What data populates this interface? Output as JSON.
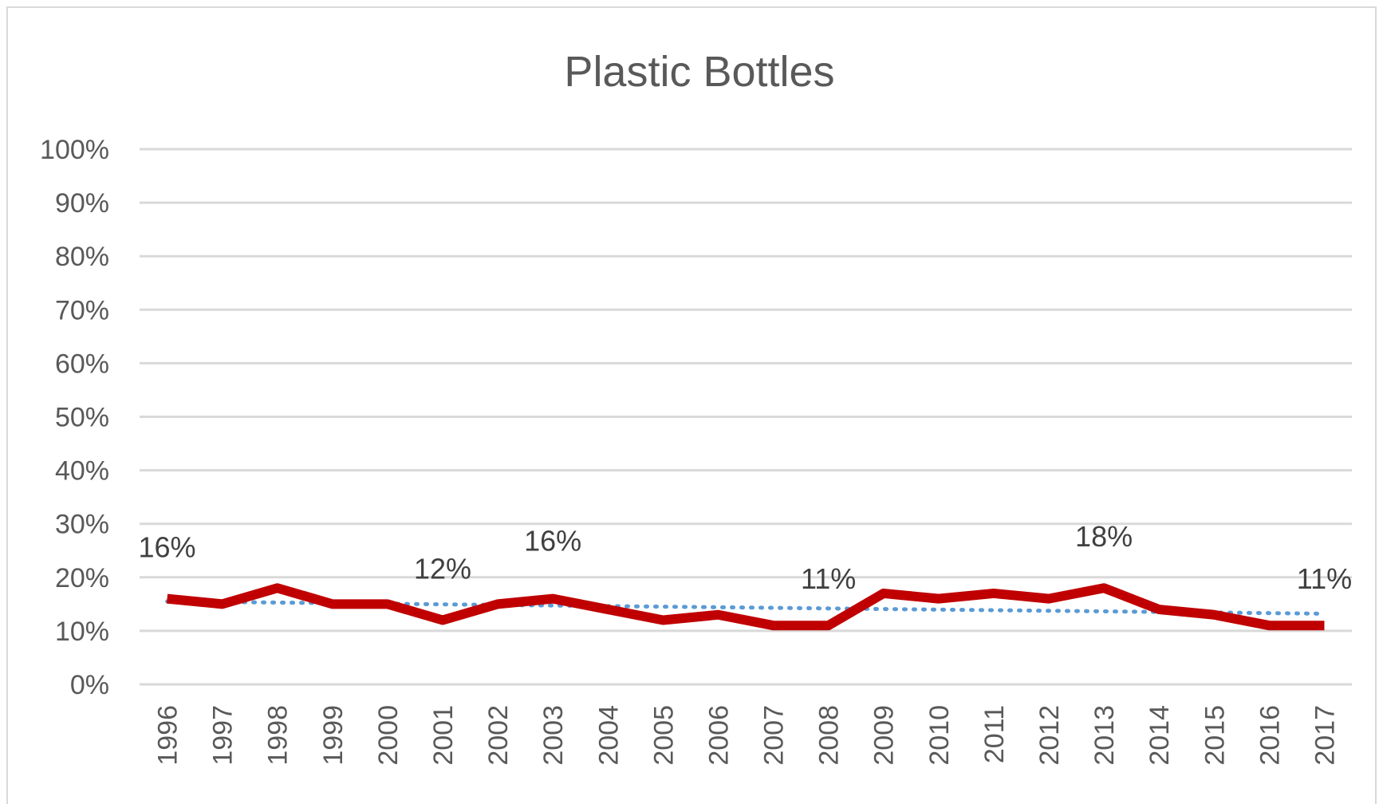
{
  "chart_data": {
    "type": "line",
    "title": "Plastic Bottles",
    "xlabel": "",
    "ylabel": "",
    "categories": [
      "1996",
      "1997",
      "1998",
      "1999",
      "2000",
      "2001",
      "2002",
      "2003",
      "2004",
      "2005",
      "2006",
      "2007",
      "2008",
      "2009",
      "2010",
      "2011",
      "2012",
      "2013",
      "2014",
      "2015",
      "2016",
      "2017"
    ],
    "series": [
      {
        "color": "#c00000",
        "values": [
          16,
          15,
          18,
          15,
          15,
          12,
          15,
          16,
          14,
          12,
          13,
          11,
          11,
          17,
          16,
          17,
          16,
          18,
          14,
          13,
          11,
          11
        ]
      }
    ],
    "trendline": {
      "type": "linear",
      "style": "dotted",
      "color": "#5b9bd5",
      "start": 15.5,
      "end": 13.2
    },
    "data_labels": [
      {
        "category": "1996",
        "text": "16%"
      },
      {
        "category": "2001",
        "text": "12%"
      },
      {
        "category": "2003",
        "text": "16%"
      },
      {
        "category": "2008",
        "text": "11%"
      },
      {
        "category": "2013",
        "text": "18%"
      },
      {
        "category": "2017",
        "text": "11%"
      }
    ],
    "y_ticks": [
      "0%",
      "10%",
      "20%",
      "30%",
      "40%",
      "50%",
      "60%",
      "70%",
      "80%",
      "90%",
      "100%"
    ],
    "ylim": [
      0,
      100
    ],
    "grid": true,
    "legend": "none"
  }
}
